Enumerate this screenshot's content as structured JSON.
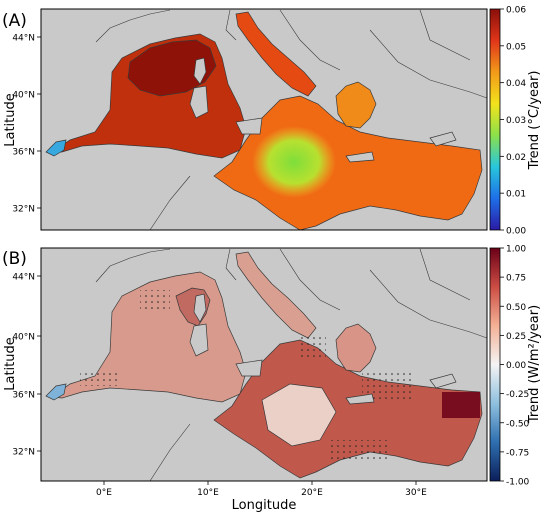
{
  "panels": [
    {
      "id": "A",
      "label": "(A)",
      "ylabel": "Latitude",
      "lat_ticks": [
        "44°N",
        "40°N",
        "36°N",
        "32°N"
      ],
      "colorbar": {
        "label": "Trend (°C/year)",
        "ticks": [
          "0.06",
          "0.05",
          "0.04",
          "0.03",
          "0.02",
          "0.01",
          "0.00"
        ],
        "range": [
          0.0,
          0.06
        ],
        "colormap": "jet-like",
        "colors": [
          "#2b1aa6",
          "#1e6fe8",
          "#28c6dc",
          "#8ce04a",
          "#f2e21c",
          "#f29a1a",
          "#e0351a",
          "#8a0f0a"
        ]
      },
      "sea_regions": [
        {
          "name": "Western Mediterranean",
          "color": "#c0300c"
        },
        {
          "name": "Gulf of Lion / Ligurian Sea",
          "color": "#8e1208"
        },
        {
          "name": "Adriatic Sea",
          "color": "#e54a12"
        },
        {
          "name": "Ionian Sea",
          "color": "#8cdc40"
        },
        {
          "name": "Aegean Sea",
          "color": "#f08a18"
        },
        {
          "name": "Levantine Basin",
          "color": "#f06a14"
        },
        {
          "name": "Alboran Sea",
          "color": "#38a8e0"
        }
      ]
    },
    {
      "id": "B",
      "label": "(B)",
      "ylabel": "Latitude",
      "lat_ticks": [
        "44°N",
        "40°N",
        "36°N",
        "32°N"
      ],
      "colorbar": {
        "label": "Trend (W/m²/year)",
        "ticks": [
          "1.00",
          "0.75",
          "0.50",
          "0.25",
          "0.00",
          "-0.25",
          "-0.50",
          "-0.75",
          "-1.00"
        ],
        "range": [
          -1.0,
          1.0
        ],
        "colormap": "RdBu_r",
        "colors": [
          "#0b1f5a",
          "#2f6fb0",
          "#8fc0de",
          "#f4f4f4",
          "#f4b196",
          "#cc4d44",
          "#6b0018"
        ]
      },
      "sea_regions": [
        {
          "name": "Western Mediterranean",
          "color": "#d79a8c"
        },
        {
          "name": "Gulf of Lion / Ligurian Sea",
          "color": "#c06a62"
        },
        {
          "name": "Adriatic Sea",
          "color": "#d9a092"
        },
        {
          "name": "Ionian Sea",
          "color": "#ebd0c8"
        },
        {
          "name": "Aegean Sea",
          "color": "#d89486"
        },
        {
          "name": "Levantine Basin",
          "color": "#c0584c"
        },
        {
          "name": "Alboran Sea",
          "color": "#7fb2d8"
        }
      ]
    }
  ],
  "xaxis": {
    "xlabel": "Longitude",
    "lon_ticks": [
      "0°E",
      "10°E",
      "20°E",
      "30°E"
    ]
  },
  "colors": {
    "land": "#c9c9c9",
    "coast": "#3a3a3a",
    "frame": "#000000"
  }
}
